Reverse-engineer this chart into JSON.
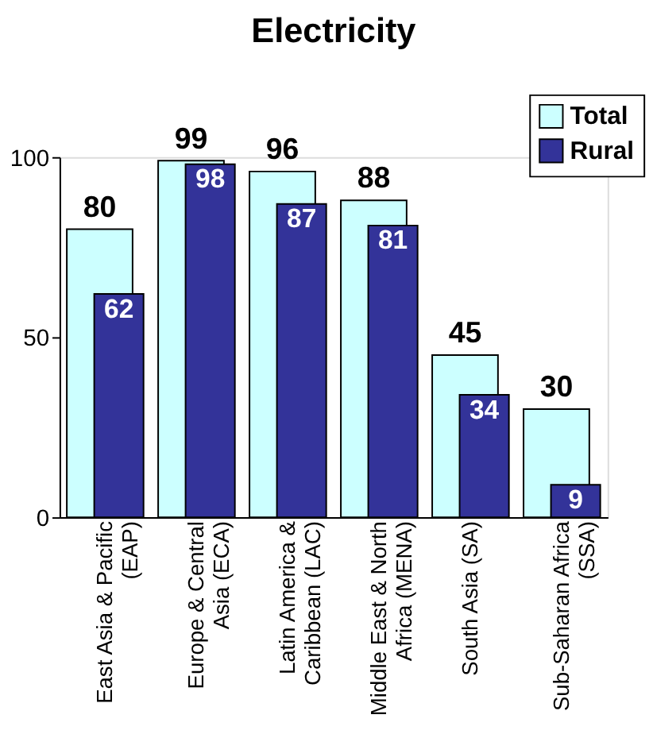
{
  "chart_data": {
    "type": "bar",
    "title": "Electricity",
    "categories": [
      "East Asia & Pacific (EAP)",
      "Europe & Central Asia (ECA)",
      "Latin America & Caribbean (LAC)",
      "Middle East & North Africa (MENA)",
      "South Asia (SA)",
      "Sub-Saharan Africa (SSA)"
    ],
    "series": [
      {
        "name": "Total",
        "color": "#ccffff",
        "values": [
          80,
          99,
          96,
          88,
          45,
          30
        ]
      },
      {
        "name": "Rural",
        "color": "#333399",
        "values": [
          62,
          98,
          87,
          81,
          34,
          9
        ]
      }
    ],
    "ylim": [
      0,
      100
    ],
    "yticks": [
      0,
      50,
      100
    ],
    "grid": false,
    "legend": "top right",
    "data_labels": true
  }
}
